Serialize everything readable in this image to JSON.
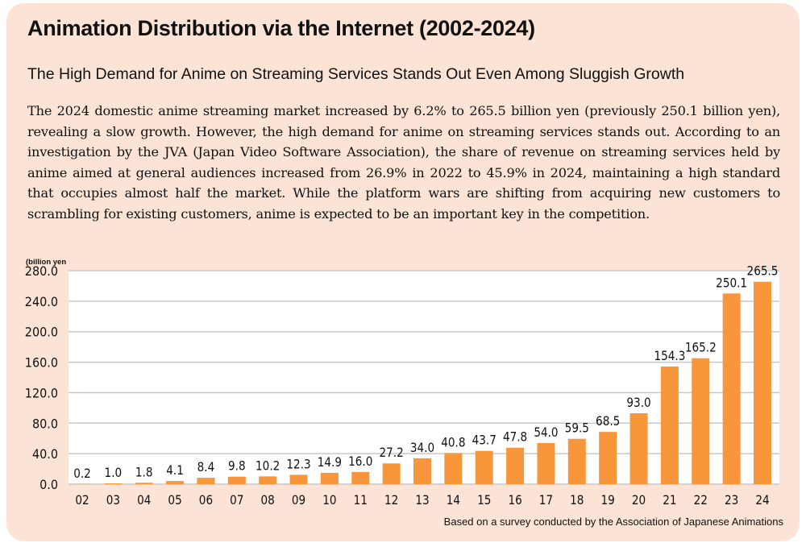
{
  "title": "Animation Distribution via the Internet (2002-2024)",
  "subtitle": "The High Demand for Anime on Streaming Services Stands Out Even Among Sluggish Growth",
  "body": "The 2024 domestic anime streaming market increased by 6.2% to 265.5 billion yen (previously 250.1 billion yen), revealing a slow growth. However, the high demand for anime on streaming services stands out. According to an investigation by the JVA (Japan Video Software Association), the share of revenue on streaming services held by anime aimed at general audiences increased from 26.9% in 2022 to 45.9% in 2024, maintaining a high standard that occupies almost half the market. While the platform wars are shifting from acquiring new customers to scrambling for existing customers, anime is expected to be an important key in the competition.",
  "source": "Based on a survey conducted by the Association of Japanese Animations",
  "chart_data": {
    "type": "bar",
    "ylabel": "(billion yen",
    "ylim": [
      0,
      280
    ],
    "yticks": [
      "0.0",
      "40.0",
      "80.0",
      "120.0",
      "160.0",
      "200.0",
      "240.0",
      "280.0"
    ],
    "grid": true,
    "bar_color": "#f7963a",
    "categories": [
      "02",
      "03",
      "04",
      "05",
      "06",
      "07",
      "08",
      "09",
      "10",
      "11",
      "12",
      "13",
      "14",
      "15",
      "16",
      "17",
      "18",
      "19",
      "20",
      "21",
      "22",
      "23",
      "24"
    ],
    "values": [
      0.2,
      1.0,
      1.8,
      4.1,
      8.4,
      9.8,
      10.2,
      12.3,
      14.9,
      16.0,
      27.2,
      34.0,
      40.8,
      43.7,
      47.8,
      54.0,
      59.5,
      68.5,
      93.0,
      154.3,
      165.2,
      250.1,
      265.5
    ],
    "labels": [
      "0.2",
      "1.0",
      "1.8",
      "4.1",
      "8.4",
      "9.8",
      "10.2",
      "12.3",
      "14.9",
      "16.0",
      "27.2",
      "34.0",
      "40.8",
      "43.7",
      "47.8",
      "54.0",
      "59.5",
      "68.5",
      "93.0",
      "154.3",
      "165.2",
      "250.1",
      "265.5"
    ]
  }
}
